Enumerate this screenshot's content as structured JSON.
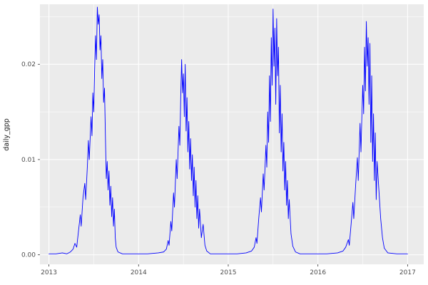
{
  "colors": {
    "background": "#FFFFFF",
    "panel_bg": "#EBEBEB",
    "grid_major": "#FFFFFF",
    "grid_minor": "#FFFFFF",
    "axis_text": "#4D4D4D",
    "axis_title": "#000000",
    "tick_mark": "#333333",
    "line": "#0000FF"
  },
  "chart_data": {
    "type": "line",
    "title": "",
    "xlabel": "",
    "ylabel": "daily_gpp",
    "x_ticks": [
      2013,
      2014,
      2015,
      2016,
      2017
    ],
    "x_tick_labels": [
      "2013",
      "2014",
      "2015",
      "2016",
      "2017"
    ],
    "x_minor_ticks": [
      2013.5,
      2014.5,
      2015.5,
      2016.5
    ],
    "y_ticks": [
      0,
      0.01,
      0.02
    ],
    "y_tick_labels": [
      "0.00",
      "0.01",
      "0.02"
    ],
    "y_minor_ticks": [
      0.005,
      0.015,
      0.025
    ],
    "xlim": [
      2012.9,
      2017.18
    ],
    "ylim": [
      -0.001,
      0.0263
    ],
    "grid": "major+minor",
    "legend": "none",
    "line_color": "#0000FF",
    "series": [
      {
        "name": "daily_gpp",
        "color": "#0000FF",
        "points": [
          [
            2013.0,
            0.0001
          ],
          [
            2013.08,
            0.0001
          ],
          [
            2013.15,
            0.0002
          ],
          [
            2013.2,
            0.0001
          ],
          [
            2013.24,
            0.0003
          ],
          [
            2013.27,
            0.0006
          ],
          [
            2013.29,
            0.0012
          ],
          [
            2013.31,
            0.0008
          ],
          [
            2013.33,
            0.0025
          ],
          [
            2013.35,
            0.0042
          ],
          [
            2013.36,
            0.003
          ],
          [
            2013.38,
            0.006
          ],
          [
            2013.4,
            0.0075
          ],
          [
            2013.41,
            0.0058
          ],
          [
            2013.43,
            0.0095
          ],
          [
            2013.44,
            0.012
          ],
          [
            2013.45,
            0.01
          ],
          [
            2013.47,
            0.0145
          ],
          [
            2013.48,
            0.0125
          ],
          [
            2013.49,
            0.017
          ],
          [
            2013.5,
            0.015
          ],
          [
            2013.51,
            0.0195
          ],
          [
            2013.52,
            0.023
          ],
          [
            2013.53,
            0.0205
          ],
          [
            2013.54,
            0.026
          ],
          [
            2013.55,
            0.0242
          ],
          [
            2013.56,
            0.0252
          ],
          [
            2013.57,
            0.0215
          ],
          [
            2013.58,
            0.023
          ],
          [
            2013.59,
            0.0185
          ],
          [
            2013.6,
            0.0205
          ],
          [
            2013.61,
            0.016
          ],
          [
            2013.62,
            0.0175
          ],
          [
            2013.63,
            0.0125
          ],
          [
            2013.64,
            0.008
          ],
          [
            2013.65,
            0.0098
          ],
          [
            2013.66,
            0.0068
          ],
          [
            2013.67,
            0.0088
          ],
          [
            2013.68,
            0.0052
          ],
          [
            2013.69,
            0.0072
          ],
          [
            2013.7,
            0.004
          ],
          [
            2013.71,
            0.006
          ],
          [
            2013.72,
            0.003
          ],
          [
            2013.73,
            0.0048
          ],
          [
            2013.74,
            0.0018
          ],
          [
            2013.75,
            0.0008
          ],
          [
            2013.77,
            0.0003
          ],
          [
            2013.82,
            0.0001
          ],
          [
            2013.95,
            0.0001
          ],
          [
            2014.1,
            0.0001
          ],
          [
            2014.22,
            0.0002
          ],
          [
            2014.28,
            0.0003
          ],
          [
            2014.31,
            0.0006
          ],
          [
            2014.33,
            0.0015
          ],
          [
            2014.34,
            0.001
          ],
          [
            2014.36,
            0.0035
          ],
          [
            2014.37,
            0.0025
          ],
          [
            2014.39,
            0.0065
          ],
          [
            2014.4,
            0.005
          ],
          [
            2014.42,
            0.01
          ],
          [
            2014.43,
            0.008
          ],
          [
            2014.45,
            0.0135
          ],
          [
            2014.46,
            0.0115
          ],
          [
            2014.47,
            0.0165
          ],
          [
            2014.48,
            0.0205
          ],
          [
            2014.49,
            0.017
          ],
          [
            2014.5,
            0.019
          ],
          [
            2014.51,
            0.0145
          ],
          [
            2014.52,
            0.02
          ],
          [
            2014.53,
            0.013
          ],
          [
            2014.54,
            0.0165
          ],
          [
            2014.55,
            0.0108
          ],
          [
            2014.56,
            0.014
          ],
          [
            2014.57,
            0.009
          ],
          [
            2014.58,
            0.0122
          ],
          [
            2014.59,
            0.0078
          ],
          [
            2014.6,
            0.0105
          ],
          [
            2014.61,
            0.0062
          ],
          [
            2014.62,
            0.0092
          ],
          [
            2014.63,
            0.005
          ],
          [
            2014.64,
            0.0078
          ],
          [
            2014.65,
            0.0038
          ],
          [
            2014.66,
            0.0062
          ],
          [
            2014.67,
            0.0028
          ],
          [
            2014.68,
            0.0048
          ],
          [
            2014.7,
            0.0018
          ],
          [
            2014.72,
            0.0032
          ],
          [
            2014.74,
            0.001
          ],
          [
            2014.76,
            0.0004
          ],
          [
            2014.8,
            0.0001
          ],
          [
            2014.95,
            0.0001
          ],
          [
            2015.1,
            0.0001
          ],
          [
            2015.2,
            0.0002
          ],
          [
            2015.26,
            0.0004
          ],
          [
            2015.29,
            0.0008
          ],
          [
            2015.31,
            0.0018
          ],
          [
            2015.32,
            0.0012
          ],
          [
            2015.34,
            0.0038
          ],
          [
            2015.36,
            0.006
          ],
          [
            2015.37,
            0.0045
          ],
          [
            2015.39,
            0.0085
          ],
          [
            2015.4,
            0.0068
          ],
          [
            2015.42,
            0.0115
          ],
          [
            2015.43,
            0.0092
          ],
          [
            2015.44,
            0.015
          ],
          [
            2015.45,
            0.0118
          ],
          [
            2015.46,
            0.0188
          ],
          [
            2015.47,
            0.014
          ],
          [
            2015.48,
            0.0228
          ],
          [
            2015.49,
            0.0178
          ],
          [
            2015.5,
            0.0258
          ],
          [
            2015.51,
            0.0198
          ],
          [
            2015.52,
            0.0238
          ],
          [
            2015.53,
            0.0158
          ],
          [
            2015.54,
            0.0248
          ],
          [
            2015.55,
            0.0188
          ],
          [
            2015.56,
            0.0218
          ],
          [
            2015.57,
            0.0128
          ],
          [
            2015.58,
            0.0178
          ],
          [
            2015.59,
            0.0108
          ],
          [
            2015.6,
            0.0148
          ],
          [
            2015.61,
            0.0088
          ],
          [
            2015.62,
            0.0118
          ],
          [
            2015.63,
            0.0068
          ],
          [
            2015.64,
            0.0098
          ],
          [
            2015.65,
            0.0052
          ],
          [
            2015.66,
            0.0078
          ],
          [
            2015.67,
            0.0038
          ],
          [
            2015.68,
            0.0058
          ],
          [
            2015.7,
            0.0022
          ],
          [
            2015.72,
            0.0009
          ],
          [
            2015.75,
            0.0003
          ],
          [
            2015.8,
            0.0001
          ],
          [
            2015.95,
            0.0001
          ],
          [
            2016.1,
            0.0001
          ],
          [
            2016.22,
            0.0002
          ],
          [
            2016.28,
            0.0004
          ],
          [
            2016.31,
            0.0008
          ],
          [
            2016.34,
            0.0016
          ],
          [
            2016.35,
            0.001
          ],
          [
            2016.37,
            0.0032
          ],
          [
            2016.39,
            0.0055
          ],
          [
            2016.4,
            0.0038
          ],
          [
            2016.42,
            0.0072
          ],
          [
            2016.44,
            0.0102
          ],
          [
            2016.45,
            0.0078
          ],
          [
            2016.47,
            0.0138
          ],
          [
            2016.48,
            0.0108
          ],
          [
            2016.5,
            0.0178
          ],
          [
            2016.51,
            0.0148
          ],
          [
            2016.52,
            0.0218
          ],
          [
            2016.53,
            0.0172
          ],
          [
            2016.54,
            0.0245
          ],
          [
            2016.55,
            0.0198
          ],
          [
            2016.56,
            0.0228
          ],
          [
            2016.57,
            0.0158
          ],
          [
            2016.58,
            0.0222
          ],
          [
            2016.59,
            0.0118
          ],
          [
            2016.6,
            0.0188
          ],
          [
            2016.61,
            0.0098
          ],
          [
            2016.62,
            0.0148
          ],
          [
            2016.63,
            0.0078
          ],
          [
            2016.64,
            0.0128
          ],
          [
            2016.65,
            0.0058
          ],
          [
            2016.66,
            0.0098
          ],
          [
            2016.68,
            0.0068
          ],
          [
            2016.7,
            0.0038
          ],
          [
            2016.72,
            0.0018
          ],
          [
            2016.74,
            0.0007
          ],
          [
            2016.78,
            0.0002
          ],
          [
            2016.88,
            0.0001
          ],
          [
            2017.0,
            0.0001
          ]
        ]
      }
    ]
  }
}
